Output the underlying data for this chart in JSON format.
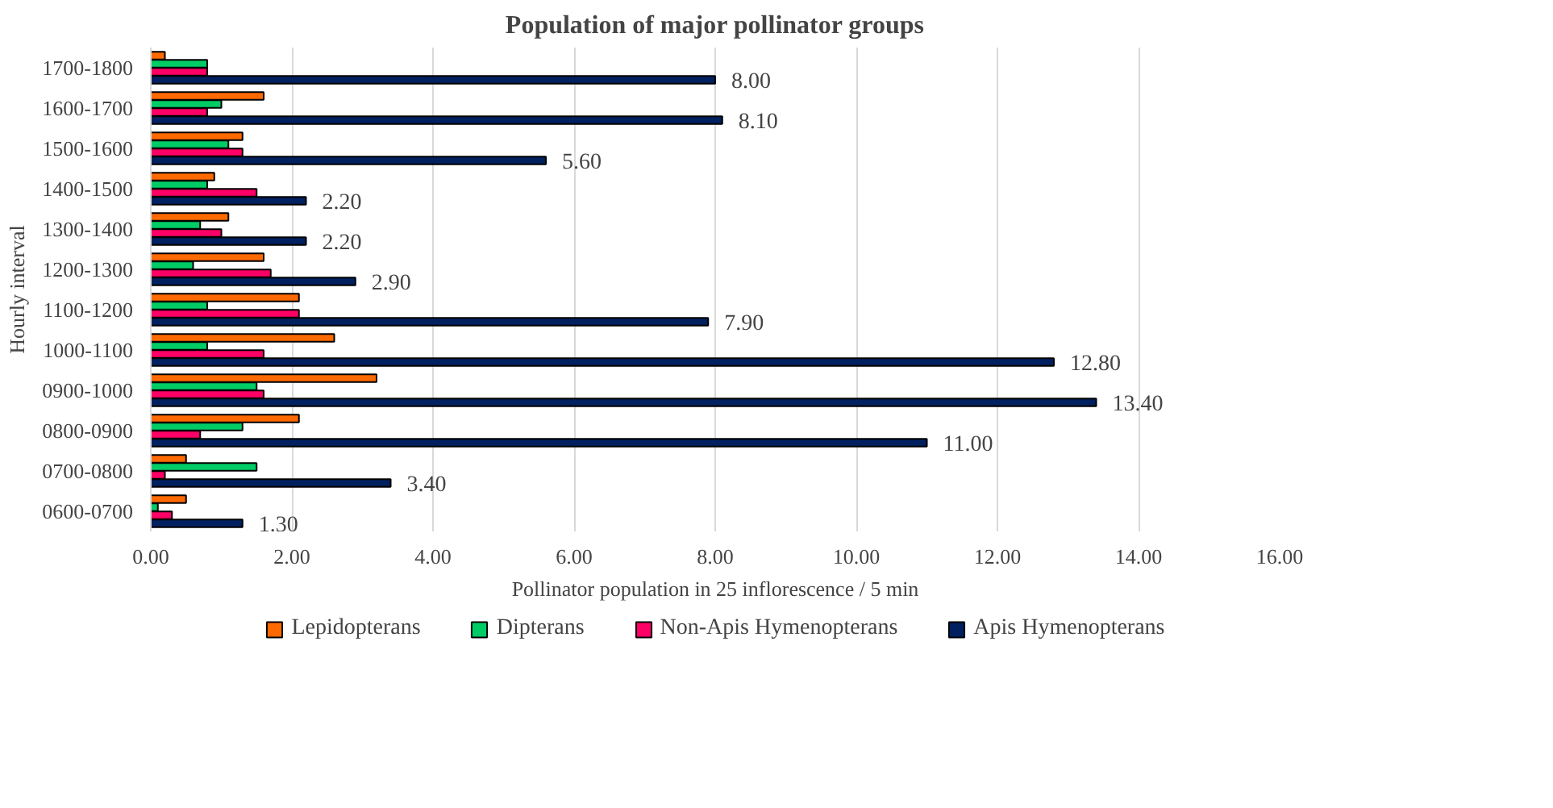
{
  "chart_data": {
    "type": "bar",
    "orientation": "horizontal",
    "title": "Population of major pollinator groups",
    "xlabel": "Pollinator population in 25 inflorescence / 5 min",
    "ylabel": "Hourly interval",
    "categories": [
      "1700-1800",
      "1600-1700",
      "1500-1600",
      "1400-1500",
      "1300-1400",
      "1200-1300",
      "1100-1200",
      "1000-1100",
      "0900-1000",
      "0800-0900",
      "0700-0800",
      "0600-0700"
    ],
    "series": [
      {
        "name": "Lepidopterans",
        "color": "#ff6a00",
        "values": [
          0.2,
          1.6,
          1.3,
          0.9,
          1.1,
          1.6,
          2.1,
          2.6,
          3.2,
          2.1,
          0.5,
          0.5
        ]
      },
      {
        "name": "Dipterans",
        "color": "#00cc66",
        "values": [
          0.8,
          1.0,
          1.1,
          0.8,
          0.7,
          0.6,
          0.8,
          0.8,
          1.5,
          1.3,
          1.5,
          0.1
        ]
      },
      {
        "name": "Non-Apis Hymenopterans",
        "color": "#ff0066",
        "values": [
          0.8,
          0.8,
          1.3,
          1.5,
          1.0,
          1.7,
          2.1,
          1.6,
          1.6,
          0.7,
          0.2,
          0.3
        ]
      },
      {
        "name": "Apis Hymenopterans",
        "color": "#002060",
        "values": [
          8.0,
          8.1,
          5.6,
          2.2,
          2.2,
          2.9,
          7.9,
          12.8,
          13.4,
          11.0,
          3.4,
          1.3
        ],
        "value_labels": [
          "8.00",
          "8.10",
          "5.60",
          "2.20",
          "2.20",
          "2.90",
          "7.90",
          "12.80",
          "13.40",
          "11.00",
          "3.40",
          "1.30"
        ]
      }
    ],
    "xlim": [
      0,
      16
    ],
    "xticks": [
      {
        "value": 0,
        "label": "0.00"
      },
      {
        "value": 2,
        "label": "2.00"
      },
      {
        "value": 4,
        "label": "4.00"
      },
      {
        "value": 6,
        "label": "6.00"
      },
      {
        "value": 8,
        "label": "8.00"
      },
      {
        "value": 10,
        "label": "10.00"
      },
      {
        "value": 12,
        "label": "12.00"
      },
      {
        "value": 14,
        "label": "14.00"
      },
      {
        "value": 16,
        "label": "16.00"
      }
    ],
    "grid": "x",
    "legend": "bottom"
  }
}
